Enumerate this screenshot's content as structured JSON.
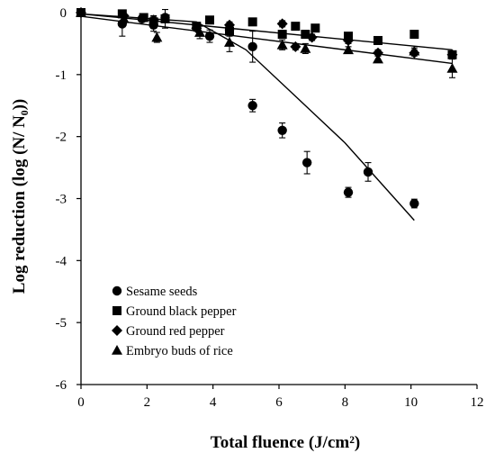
{
  "chart_data": {
    "type": "scatter",
    "title": "",
    "xlabel": "Total fluence (J/cm²)",
    "ylabel": "Log reduction (log (N/ N₀))",
    "xlim": [
      0,
      12
    ],
    "ylim": [
      -6,
      0
    ],
    "xticks": [
      "0",
      "2",
      "4",
      "6",
      "8",
      "10",
      "12"
    ],
    "yticks": [
      "0",
      "-1",
      "-2",
      "-3",
      "-4",
      "-5",
      "-6"
    ],
    "grid": false,
    "legend_position": "bottom-left",
    "series": [
      {
        "name": "Sesame seeds",
        "marker": "circle",
        "points": [
          {
            "x": 0,
            "y": 0,
            "err": 0
          },
          {
            "x": 1.25,
            "y": -0.18,
            "err": 0.2
          },
          {
            "x": 1.85,
            "y": -0.1,
            "err": 0.05
          },
          {
            "x": 2.2,
            "y": -0.2,
            "err": 0.1
          },
          {
            "x": 2.55,
            "y": -0.08,
            "err": 0.05
          },
          {
            "x": 3.9,
            "y": -0.38,
            "err": 0.1
          },
          {
            "x": 4.5,
            "y": -0.28,
            "err": 0.1
          },
          {
            "x": 5.2,
            "y": -0.55,
            "err": 0.25
          },
          {
            "x": 5.2,
            "y": -1.5,
            "err": 0.1
          },
          {
            "x": 6.1,
            "y": -1.9,
            "err": 0.12
          },
          {
            "x": 6.85,
            "y": -2.42,
            "err": 0.18
          },
          {
            "x": 8.1,
            "y": -2.9,
            "err": 0.08
          },
          {
            "x": 8.7,
            "y": -2.57,
            "err": 0.15
          },
          {
            "x": 10.1,
            "y": -3.08,
            "err": 0.07
          }
        ],
        "fit": [
          [
            0,
            -0.02
          ],
          [
            3.5,
            -0.15
          ],
          [
            5,
            -0.6
          ],
          [
            6.5,
            -1.35
          ],
          [
            8,
            -2.1
          ],
          [
            10.1,
            -3.35
          ]
        ]
      },
      {
        "name": "Ground black pepper",
        "marker": "square",
        "points": [
          {
            "x": 0,
            "y": 0,
            "err": 0
          },
          {
            "x": 1.25,
            "y": -0.02,
            "err": 0.03
          },
          {
            "x": 1.9,
            "y": -0.08,
            "err": 0.05
          },
          {
            "x": 2.2,
            "y": -0.15,
            "err": 0.1
          },
          {
            "x": 2.55,
            "y": -0.1,
            "err": 0.15
          },
          {
            "x": 3.5,
            "y": -0.22,
            "err": 0.05
          },
          {
            "x": 3.9,
            "y": -0.12,
            "err": 0.05
          },
          {
            "x": 4.5,
            "y": -0.3,
            "err": 0.05
          },
          {
            "x": 5.2,
            "y": -0.15,
            "err": 0.05
          },
          {
            "x": 6.1,
            "y": -0.35,
            "err": 0.05
          },
          {
            "x": 6.5,
            "y": -0.22,
            "err": 0.05
          },
          {
            "x": 6.8,
            "y": -0.35,
            "err": 0.05
          },
          {
            "x": 7.1,
            "y": -0.25,
            "err": 0.05
          },
          {
            "x": 8.1,
            "y": -0.38,
            "err": 0.05
          },
          {
            "x": 9,
            "y": -0.45,
            "err": 0.05
          },
          {
            "x": 10.1,
            "y": -0.35,
            "err": 0.05
          },
          {
            "x": 11.25,
            "y": -0.68,
            "err": 0.05
          }
        ],
        "fit": [
          [
            0,
            -0.02
          ],
          [
            11.25,
            -0.6
          ]
        ]
      },
      {
        "name": "Ground red pepper",
        "marker": "diamond",
        "points": [
          {
            "x": 0,
            "y": 0,
            "err": 0
          },
          {
            "x": 1.3,
            "y": -0.05,
            "err": 0.03
          },
          {
            "x": 2.2,
            "y": -0.12,
            "err": 0.05
          },
          {
            "x": 3.5,
            "y": -0.25,
            "err": 0.05
          },
          {
            "x": 4.5,
            "y": -0.2,
            "err": 0.05
          },
          {
            "x": 6.1,
            "y": -0.18,
            "err": 0.05
          },
          {
            "x": 6.5,
            "y": -0.55,
            "err": 0.05
          },
          {
            "x": 7.0,
            "y": -0.4,
            "err": 0.05
          },
          {
            "x": 8.1,
            "y": -0.45,
            "err": 0.05
          },
          {
            "x": 9,
            "y": -0.65,
            "err": 0.05
          },
          {
            "x": 10.1,
            "y": -0.65,
            "err": 0.05
          },
          {
            "x": 11.25,
            "y": -0.68,
            "err": 0.05
          }
        ],
        "fit": null
      },
      {
        "name": "Embryo buds of rice",
        "marker": "triangle",
        "points": [
          {
            "x": 0,
            "y": 0,
            "err": 0
          },
          {
            "x": 1.3,
            "y": -0.1,
            "err": 0.05
          },
          {
            "x": 2.3,
            "y": -0.4,
            "err": 0.08
          },
          {
            "x": 3.6,
            "y": -0.32,
            "err": 0.1
          },
          {
            "x": 4.5,
            "y": -0.48,
            "err": 0.15
          },
          {
            "x": 6.1,
            "y": -0.52,
            "err": 0.08
          },
          {
            "x": 6.8,
            "y": -0.58,
            "err": 0.08
          },
          {
            "x": 8.1,
            "y": -0.6,
            "err": 0.05
          },
          {
            "x": 9.0,
            "y": -0.75,
            "err": 0.05
          },
          {
            "x": 10.1,
            "y": -0.62,
            "err": 0.05
          },
          {
            "x": 11.25,
            "y": -0.9,
            "err": 0.15
          }
        ],
        "fit": [
          [
            0,
            -0.06
          ],
          [
            11.25,
            -0.82
          ]
        ]
      }
    ]
  }
}
